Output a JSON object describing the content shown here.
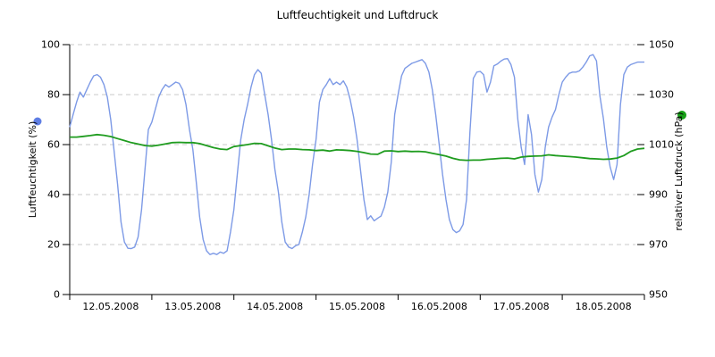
{
  "title": "Luftfeuchtigkeit und Luftdruck",
  "left_axis": {
    "label": "Luftfeuchtigkeit (%)",
    "ticks": [
      0,
      20,
      40,
      60,
      80,
      100
    ],
    "range": [
      0,
      100
    ],
    "legend_dot_color": "#5f7ee4"
  },
  "right_axis": {
    "label": "relativer Luftdruck (hPa)",
    "ticks": [
      950,
      970,
      990,
      1010,
      1030,
      1050
    ],
    "range": [
      950,
      1050
    ],
    "legend_dot_color": "#17a017"
  },
  "x_axis": {
    "labels": [
      "12.05.2008",
      "13.05.2008",
      "14.05.2008",
      "15.05.2008",
      "16.05.2008",
      "17.05.2008",
      "18.05.2008"
    ],
    "tick_count": 8
  },
  "colors": {
    "humidity_line": "#7d9ae6",
    "pressure_line": "#1f9c1f",
    "grid": "#c9c9c9",
    "axis": "#000000"
  },
  "chart_data": {
    "type": "line",
    "title": "Luftfeuchtigkeit und Luftdruck",
    "x_unit": "hours since 12.05.2008 00:00",
    "x_range_hours": [
      0,
      168
    ],
    "categories": [
      "12.05.2008",
      "13.05.2008",
      "14.05.2008",
      "15.05.2008",
      "16.05.2008",
      "17.05.2008",
      "18.05.2008"
    ],
    "ylim_left": [
      0,
      100
    ],
    "ylim_right": [
      950,
      1050
    ],
    "grid": "horizontal dashed lines at left-axis values 20,40,60,80,100",
    "legend_position": "rotated axis labels with colored dots on left and right sides",
    "series": [
      {
        "name": "Luftfeuchtigkeit (%)",
        "axis": "left",
        "color": "#7d9ae6",
        "sample_interval_hours": 1,
        "values": [
          67,
          72,
          77,
          81,
          79,
          82,
          85,
          87.5,
          88,
          87,
          84,
          79,
          70,
          57,
          44,
          29,
          21,
          18.5,
          18.4,
          19,
          23,
          34,
          50,
          66,
          69,
          74,
          79,
          82,
          84,
          83,
          84,
          85,
          84.5,
          82,
          76,
          66,
          58,
          45,
          31,
          22,
          17.5,
          16,
          16.5,
          16,
          17,
          16.5,
          17.5,
          25,
          34,
          48,
          62,
          70,
          76,
          83,
          88,
          90,
          88.5,
          80,
          72,
          62,
          50,
          41,
          29,
          21,
          19,
          18.4,
          19.5,
          20,
          25,
          31,
          40,
          52,
          62,
          77,
          82,
          84,
          86.4,
          84,
          85,
          84,
          85.5,
          83,
          78,
          71,
          62,
          50,
          38,
          30,
          31.5,
          29.5,
          30.5,
          31.4,
          35,
          41,
          53,
          72,
          80,
          87.5,
          90.5,
          91.5,
          92.5,
          93,
          93.5,
          94,
          92.5,
          89,
          82,
          72,
          60,
          48,
          38,
          30,
          26,
          24.8,
          25.5,
          28,
          38,
          65,
          86.5,
          89,
          89.3,
          88,
          81,
          85,
          91.5,
          92.2,
          93.4,
          94.2,
          94.4,
          92,
          87,
          70,
          58.8,
          52,
          72,
          64,
          48,
          41,
          46,
          58.8,
          67,
          71,
          74,
          80,
          85,
          87,
          88.5,
          89,
          89,
          89.5,
          91,
          93,
          95.5,
          96,
          93.5,
          79.5,
          70.5,
          59,
          51,
          46,
          52,
          76,
          88,
          91,
          92,
          92.5,
          93,
          93,
          93
        ]
      },
      {
        "name": "relativer Luftdruck (hPa)",
        "axis": "right",
        "color": "#1f9c1f",
        "sample_interval_hours": 2,
        "values": [
          1013.0,
          1013.0,
          1013.3,
          1013.6,
          1014.0,
          1013.7,
          1013.2,
          1012.4,
          1011.6,
          1010.8,
          1010.2,
          1009.6,
          1009.4,
          1009.8,
          1010.3,
          1010.8,
          1010.9,
          1010.8,
          1010.8,
          1010.4,
          1009.6,
          1008.8,
          1008.2,
          1008.0,
          1009.2,
          1009.6,
          1010.0,
          1010.5,
          1010.4,
          1009.5,
          1008.6,
          1008.0,
          1008.2,
          1008.2,
          1008.0,
          1007.9,
          1007.6,
          1007.8,
          1007.4,
          1007.9,
          1007.8,
          1007.6,
          1007.3,
          1006.8,
          1006.2,
          1006.1,
          1007.4,
          1007.5,
          1007.2,
          1007.4,
          1007.2,
          1007.3,
          1007.1,
          1006.5,
          1006.0,
          1005.4,
          1004.5,
          1003.9,
          1003.7,
          1003.8,
          1003.8,
          1004.1,
          1004.3,
          1004.5,
          1004.6,
          1004.3,
          1005.0,
          1005.3,
          1005.4,
          1005.5,
          1005.9,
          1005.6,
          1005.4,
          1005.2,
          1005.0,
          1004.7,
          1004.4,
          1004.3,
          1004.1,
          1004.2,
          1004.6,
          1005.6,
          1007.3,
          1008.2,
          1008.5
        ]
      }
    ]
  }
}
